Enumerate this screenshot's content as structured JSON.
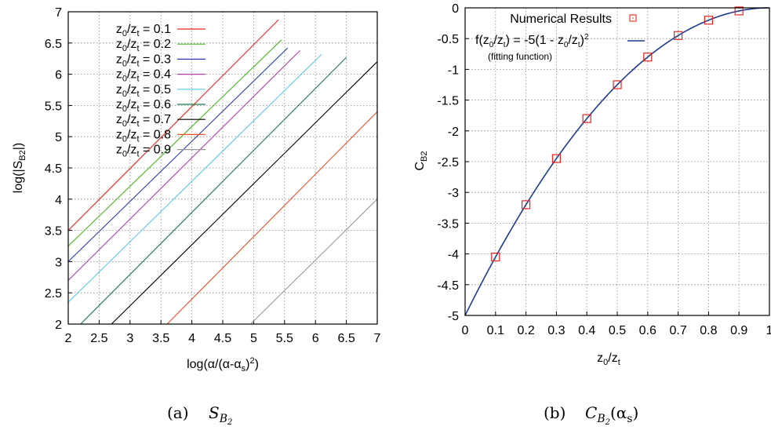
{
  "chart_data": [
    {
      "type": "line",
      "xlabel": "log(α/(α-α_s)²)",
      "ylabel": "log(|S_B2|)",
      "xlim": [
        2,
        7
      ],
      "ylim": [
        2,
        7
      ],
      "xticks": [
        "2",
        "2.5",
        "3",
        "3.5",
        "4",
        "4.5",
        "5",
        "5.5",
        "6",
        "6.5",
        "7"
      ],
      "yticks": [
        "2",
        "2.5",
        "3",
        "3.5",
        "4",
        "4.5",
        "5",
        "5.5",
        "6",
        "6.5",
        "7"
      ],
      "grid": true,
      "legend_position": "top-left",
      "series": [
        {
          "name": "z0/zt = 0.1",
          "color": "#e8251e",
          "x": [
            2.0,
            5.4
          ],
          "y": [
            3.5,
            6.87
          ]
        },
        {
          "name": "z0/zt = 0.2",
          "color": "#4ab81f",
          "x": [
            2.0,
            5.45
          ],
          "y": [
            3.25,
            6.55
          ]
        },
        {
          "name": "z0/zt = 0.3",
          "color": "#2a3cb0",
          "x": [
            2.0,
            5.55
          ],
          "y": [
            3.0,
            6.42
          ]
        },
        {
          "name": "z0/zt = 0.4",
          "color": "#b03cb0",
          "x": [
            2.0,
            5.75
          ],
          "y": [
            2.7,
            6.38
          ]
        },
        {
          "name": "z0/zt = 0.5",
          "color": "#5ec8f0",
          "x": [
            2.0,
            6.1
          ],
          "y": [
            2.35,
            6.32
          ]
        },
        {
          "name": "z0/zt = 0.6",
          "color": "#1a7a4a",
          "x": [
            2.2,
            6.5
          ],
          "y": [
            2.0,
            6.27
          ]
        },
        {
          "name": "z0/zt = 0.7",
          "color": "#000000",
          "x": [
            2.7,
            7.0
          ],
          "y": [
            2.0,
            6.2
          ]
        },
        {
          "name": "z0/zt = 0.8",
          "color": "#e8502a",
          "x": [
            3.6,
            7.0
          ],
          "y": [
            2.0,
            5.4
          ]
        },
        {
          "name": "z0/zt = 0.9",
          "color": "#9a9a9a",
          "x": [
            4.95,
            7.0
          ],
          "y": [
            2.0,
            4.0
          ]
        }
      ]
    },
    {
      "type": "scatter",
      "xlabel": "z0/zt",
      "ylabel": "C_B2",
      "xlim": [
        0,
        1
      ],
      "ylim": [
        -5,
        0
      ],
      "xticks": [
        "0",
        "0.1",
        "0.2",
        "0.3",
        "0.4",
        "0.5",
        "0.6",
        "0.7",
        "0.8",
        "0.9",
        "1"
      ],
      "yticks": [
        "0",
        "-0.5",
        "-1",
        "-1.5",
        "-2",
        "-2.5",
        "-3",
        "-3.5",
        "-4",
        "-4.5",
        "-5"
      ],
      "grid": true,
      "legend_position": "top-left",
      "series": [
        {
          "name": "Numerical Results",
          "color": "#e8251e",
          "marker": "square",
          "x": [
            0.1,
            0.2,
            0.3,
            0.4,
            0.5,
            0.6,
            0.7,
            0.8,
            0.9
          ],
          "y": [
            -4.05,
            -3.2,
            -2.45,
            -1.8,
            -1.25,
            -0.8,
            -0.45,
            -0.2,
            -0.05
          ]
        },
        {
          "name": "f(z0/zt) = -5(1 - z0/zt)²",
          "note": "(fitting function)",
          "color": "#1f3d8f",
          "function": "-5*(1-x)^2"
        }
      ]
    }
  ],
  "captions": {
    "a_label": "(a)",
    "b_label": "(b)"
  }
}
